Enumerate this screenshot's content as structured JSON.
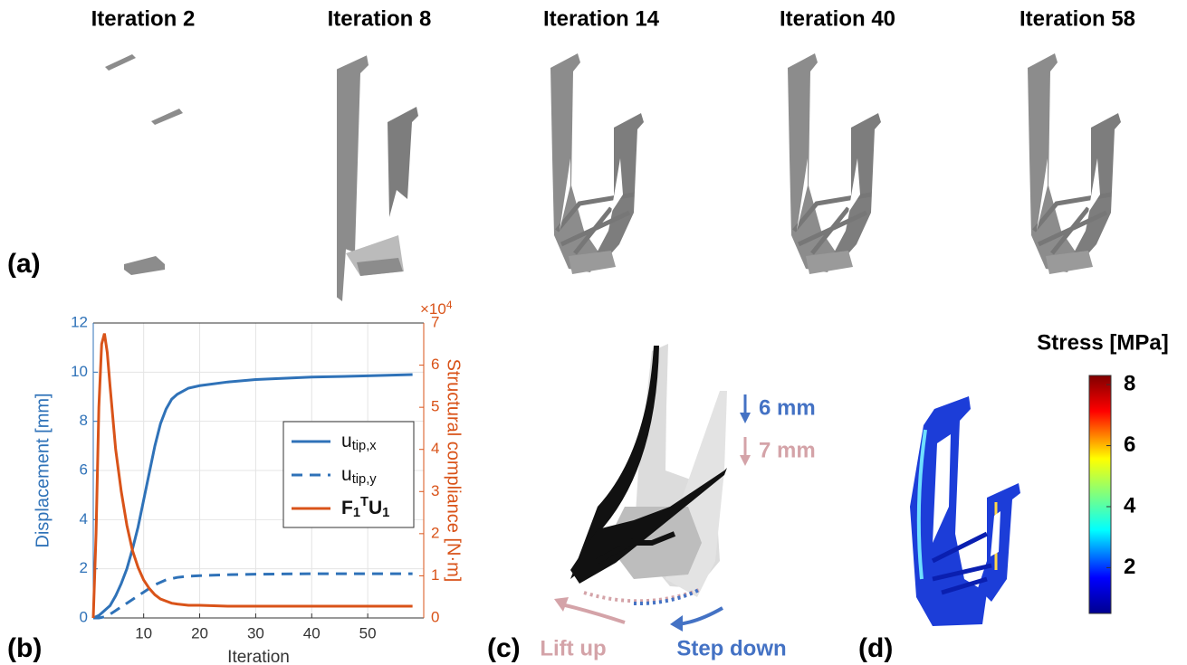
{
  "panels": {
    "a": {
      "label": "(a)",
      "titles": [
        "Iteration 2",
        "Iteration 8",
        "Iteration 14",
        "Iteration 40",
        "Iteration 58"
      ]
    },
    "b": {
      "label": "(b)"
    },
    "c": {
      "label": "(c)",
      "annotations": [
        "6 mm",
        "7 mm",
        "Lift up",
        "Step down"
      ]
    },
    "d": {
      "label": "(d)",
      "colorbar": {
        "title": "Stress [MPa]",
        "lim": [
          0.5,
          8.3
        ],
        "ticks": [
          2,
          4,
          6,
          8
        ]
      }
    }
  },
  "chart_data": {
    "type": "line",
    "xlabel": "Iteration",
    "ylabel": "Displacement [mm]",
    "y2label": "Structural compliance [N·m]",
    "y2exponent": "×104",
    "x": [
      1,
      1.5,
      2,
      2.5,
      3,
      3.5,
      4,
      5,
      6,
      7,
      8,
      9,
      10,
      11,
      12,
      13,
      14,
      15,
      16,
      18,
      20,
      25,
      30,
      40,
      50,
      58
    ],
    "xlim": [
      1,
      60
    ],
    "xticks": [
      10,
      20,
      30,
      40,
      50
    ],
    "ylim": [
      0,
      12
    ],
    "yticks": [
      0,
      2,
      4,
      6,
      8,
      10,
      12
    ],
    "y2lim": [
      0,
      7
    ],
    "y2ticks": [
      0,
      1,
      2,
      3,
      4,
      5,
      6,
      7
    ],
    "grid": true,
    "legend": "right",
    "series": [
      {
        "name": "utip,x",
        "color": "#2f72b8",
        "line_style": "solid",
        "values": [
          0,
          0.05,
          0.1,
          0.2,
          0.3,
          0.4,
          0.5,
          0.9,
          1.4,
          2.0,
          2.8,
          3.7,
          4.8,
          5.9,
          7.0,
          7.9,
          8.5,
          8.9,
          9.1,
          9.35,
          9.45,
          9.6,
          9.7,
          9.8,
          9.85,
          9.9
        ]
      },
      {
        "name": "utip,y",
        "color": "#2f72b8",
        "line_style": "dashed",
        "values": [
          0,
          0,
          0,
          0.02,
          0.05,
          0.1,
          0.15,
          0.3,
          0.45,
          0.6,
          0.75,
          0.9,
          1.05,
          1.2,
          1.35,
          1.45,
          1.55,
          1.6,
          1.65,
          1.7,
          1.72,
          1.76,
          1.78,
          1.8,
          1.8,
          1.8
        ]
      },
      {
        "name": "F1TU1",
        "color": "#d95319",
        "line_style": "solid",
        "axis": "y2",
        "values": [
          0,
          2.0,
          5.0,
          6.5,
          6.75,
          6.3,
          5.5,
          4.0,
          3.0,
          2.2,
          1.6,
          1.2,
          0.9,
          0.7,
          0.55,
          0.45,
          0.4,
          0.35,
          0.33,
          0.3,
          0.3,
          0.28,
          0.28,
          0.28,
          0.28,
          0.28
        ]
      }
    ]
  }
}
